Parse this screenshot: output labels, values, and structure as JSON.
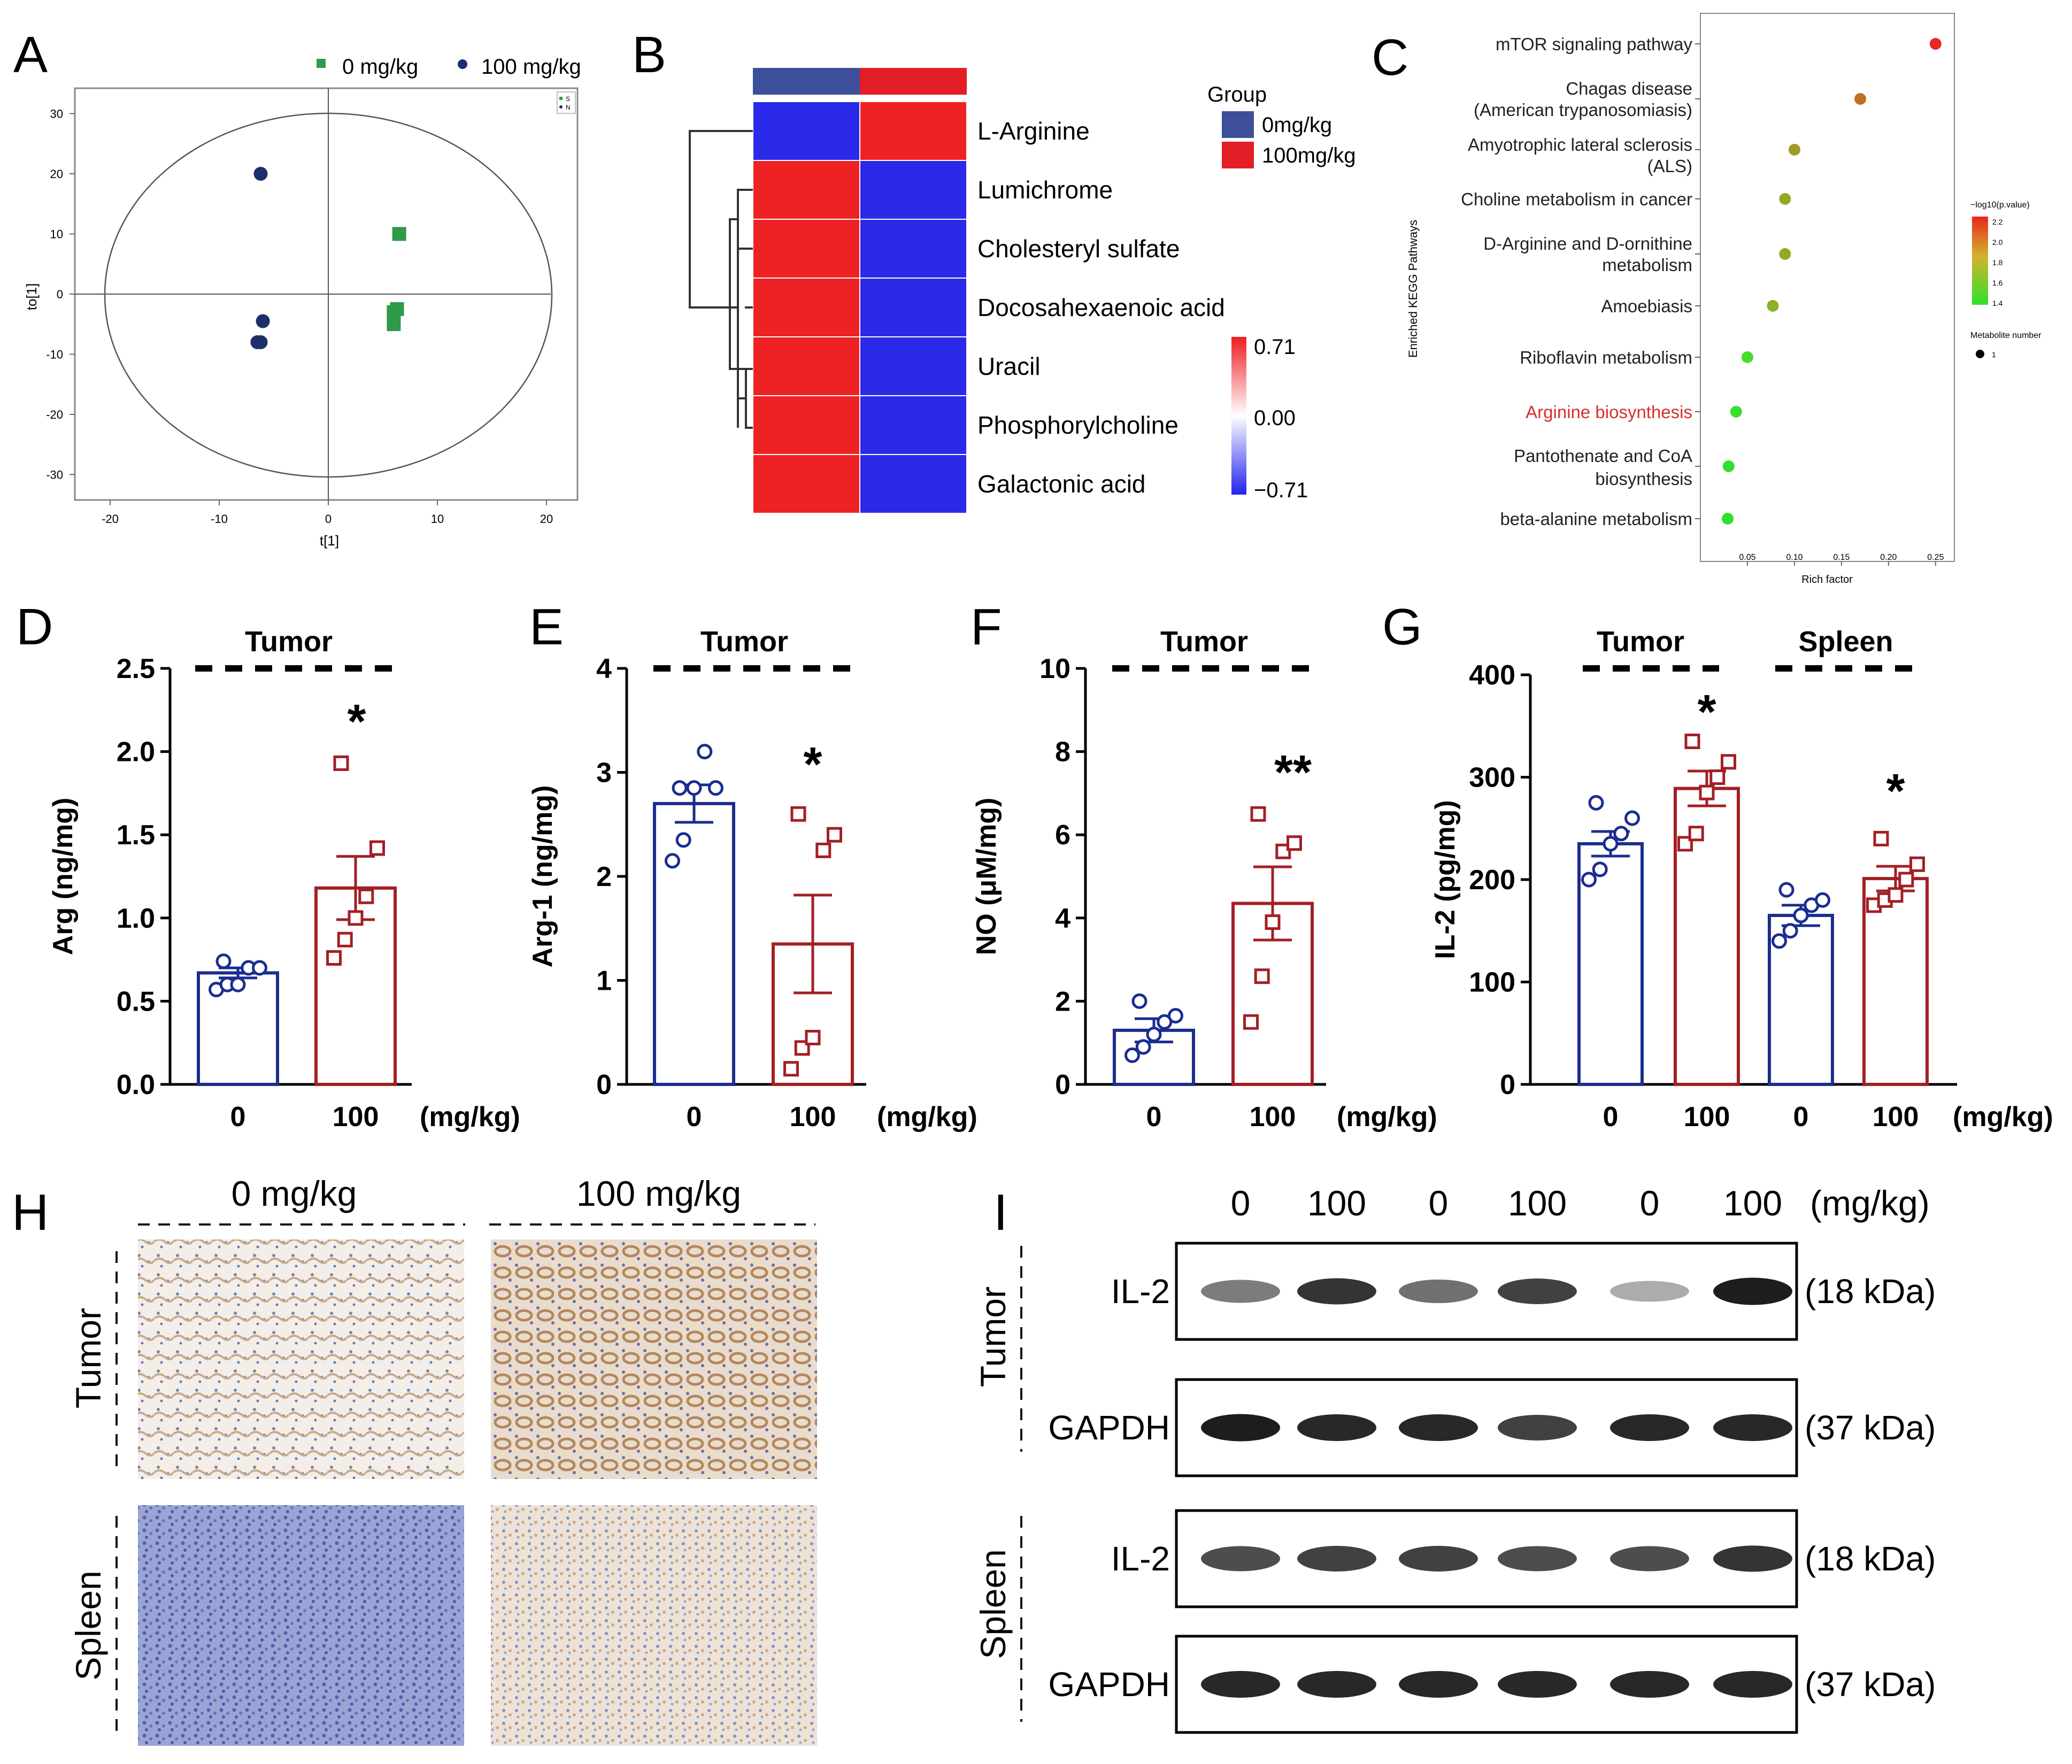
{
  "panel_letters": {
    "a": "A",
    "b": "B",
    "c": "C",
    "d": "D",
    "e": "E",
    "f": "F",
    "g": "G",
    "h": "H",
    "i": "I"
  },
  "colors": {
    "green": "#2e9a4a",
    "navy": "#1c2f6b",
    "blue": "#1b2d8f",
    "red": "#a31f24",
    "heat_red": "#ee2222",
    "heat_blue": "#2a2ae8",
    "group_blue": "#3d4f9a",
    "group_red": "#e41e26"
  },
  "panelA": {
    "legend": [
      "0 mg/kg",
      "100 mg/kg"
    ],
    "small_legend": [
      "S",
      "N"
    ],
    "xlabel": "t[1]",
    "ylabel": "to[1]",
    "xticks": [
      "-20",
      "-10",
      "0",
      "10",
      "20"
    ],
    "yticks": [
      "30",
      "20",
      "10",
      "0",
      "-10",
      "-20",
      "-30"
    ]
  },
  "panelB": {
    "metabolites": [
      "L-Arginine",
      "Lumichrome",
      "Cholesteryl sulfate",
      "Docosahexaenoic acid",
      "Uracil",
      "Phosphorylcholine",
      "Galactonic acid"
    ],
    "group_title": "Group",
    "groups": [
      "0mg/kg",
      "100mg/kg"
    ],
    "scale": [
      "0.71",
      "0.00",
      "−0.71"
    ]
  },
  "panelC": {
    "ylabel": "Enriched KEGG Pathways",
    "xlabel": "Rich factor",
    "pathways": [
      "mTOR signaling pathway",
      "Chagas disease",
      "(American trypanosomiasis)",
      "Amyotrophic lateral sclerosis",
      "(ALS)",
      "Choline metabolism in cancer",
      "D-Arginine and D-ornithine",
      "metabolism",
      "Amoebiasis",
      "Riboflavin metabolism",
      "Arginine biosynthesis",
      "Pantothenate and CoA",
      "biosynthesis",
      "beta-alanine metabolism"
    ],
    "xticks": [
      "0.05",
      "0.10",
      "0.15",
      "0.20",
      "0.25"
    ],
    "legend_title": "−log10(p.value)",
    "legend_ticks": [
      "2.2",
      "2.0",
      "1.8",
      "1.6",
      "1.4"
    ],
    "size_title": "Metabolite number",
    "size_value": "1"
  },
  "bar_panels": {
    "d": {
      "title": "Tumor",
      "ylabel": "Arg (ng/mg)",
      "yticks": [
        "0.0",
        "0.5",
        "1.0",
        "1.5",
        "2.0",
        "2.5"
      ],
      "xticks": [
        "0",
        "100"
      ],
      "unit": "(mg/kg)",
      "sig": "*"
    },
    "e": {
      "title": "Tumor",
      "ylabel": "Arg-1 (ng/mg)",
      "yticks": [
        "0",
        "1",
        "2",
        "3",
        "4"
      ],
      "xticks": [
        "0",
        "100"
      ],
      "unit": "(mg/kg)",
      "sig": "*"
    },
    "f": {
      "title": "Tumor",
      "ylabel": "NO (μM/mg)",
      "yticks": [
        "0",
        "2",
        "4",
        "6",
        "8",
        "10"
      ],
      "xticks": [
        "0",
        "100"
      ],
      "unit": "(mg/kg)",
      "sig": "**"
    },
    "g": {
      "titles": [
        "Tumor",
        "Spleen"
      ],
      "ylabel": "IL-2 (pg/mg)",
      "yticks": [
        "0",
        "100",
        "200",
        "300",
        "400"
      ],
      "xticks": [
        "0",
        "100",
        "0",
        "100"
      ],
      "unit": "(mg/kg)",
      "sig": [
        "*",
        "*"
      ]
    }
  },
  "panelH": {
    "cols": [
      "0 mg/kg",
      "100 mg/kg"
    ],
    "rows": [
      "Tumor",
      "Spleen"
    ]
  },
  "panelI": {
    "doses": [
      "0",
      "100",
      "0",
      "100",
      "0",
      "100"
    ],
    "unit": "(mg/kg)",
    "tissues": [
      "Tumor",
      "Spleen"
    ],
    "blots": [
      {
        "label": "IL-2",
        "size": "(18 kDa)"
      },
      {
        "label": "GAPDH",
        "size": "(37 kDa)"
      },
      {
        "label": "IL-2",
        "size": "(18 kDa)"
      },
      {
        "label": "GAPDH",
        "size": "(37 kDa)"
      }
    ]
  },
  "chart_data": [
    {
      "panel": "A",
      "type": "scatter",
      "title": "",
      "xlabel": "t[1]",
      "ylabel": "to[1]",
      "xlim": [
        -25,
        25
      ],
      "ylim": [
        -35,
        35
      ],
      "series": [
        {
          "name": "0 mg/kg",
          "points": [
            [
              6.5,
              10
            ],
            [
              6.3,
              -2.5
            ],
            [
              6,
              -3
            ],
            [
              6,
              -5
            ]
          ]
        },
        {
          "name": "100 mg/kg",
          "points": [
            [
              -6.2,
              20
            ],
            [
              -6,
              -4.5
            ],
            [
              -6.5,
              -8
            ],
            [
              -6.2,
              -8
            ]
          ]
        }
      ]
    },
    {
      "panel": "B",
      "type": "heatmap",
      "rows": [
        "L-Arginine",
        "Lumichrome",
        "Cholesteryl sulfate",
        "Docosahexaenoic acid",
        "Uracil",
        "Phosphorylcholine",
        "Galactonic acid"
      ],
      "columns": [
        "0mg/kg",
        "100mg/kg"
      ],
      "values": [
        [
          -0.71,
          0.71
        ],
        [
          0.71,
          -0.71
        ],
        [
          0.71,
          -0.71
        ],
        [
          0.71,
          -0.71
        ],
        [
          0.71,
          -0.71
        ],
        [
          0.71,
          -0.71
        ],
        [
          0.71,
          -0.71
        ]
      ],
      "range": [
        -0.71,
        0.71
      ]
    },
    {
      "panel": "C",
      "type": "scatter",
      "title": "",
      "xlabel": "Rich factor",
      "ylabel": "Enriched KEGG Pathways",
      "xlim": [
        0.0,
        0.27
      ],
      "categories": [
        "mTOR signaling pathway",
        "Chagas disease (American trypanosomiasis)",
        "Amyotrophic lateral sclerosis (ALS)",
        "Choline metabolism in cancer",
        "D-Arginine and D-ornithine metabolism",
        "Amoebiasis",
        "Riboflavin metabolism",
        "Arginine biosynthesis",
        "Pantothenate and CoA biosynthesis",
        "beta-alanine metabolism"
      ],
      "rich_factor": [
        0.25,
        0.17,
        0.1,
        0.09,
        0.09,
        0.077,
        0.05,
        0.038,
        0.03,
        0.029
      ],
      "neg_log10_p": [
        2.3,
        2.1,
        1.95,
        1.9,
        1.9,
        1.85,
        1.5,
        1.45,
        1.35,
        1.35
      ],
      "metabolite_number": [
        1,
        1,
        1,
        1,
        1,
        1,
        1,
        1,
        1,
        1
      ],
      "color_range": [
        1.4,
        2.2
      ]
    },
    {
      "panel": "D",
      "type": "bar",
      "title": "Tumor",
      "ylabel": "Arg (ng/mg)",
      "ylim": [
        0,
        2.5
      ],
      "categories": [
        "0",
        "100"
      ],
      "values": [
        0.67,
        1.18
      ],
      "sem": [
        0.03,
        0.19
      ],
      "points": [
        [
          0.57,
          0.6,
          0.6,
          0.7,
          0.7,
          0.74
        ],
        [
          0.76,
          0.87,
          1.0,
          1.13,
          1.42,
          1.93
        ]
      ],
      "significance": "*"
    },
    {
      "panel": "E",
      "type": "bar",
      "title": "Tumor",
      "ylabel": "Arg-1 (ng/mg)",
      "ylim": [
        0,
        4
      ],
      "categories": [
        "0",
        "100"
      ],
      "values": [
        2.7,
        1.35
      ],
      "sem": [
        0.18,
        0.47
      ],
      "points": [
        [
          2.15,
          2.35,
          2.85,
          3.2,
          2.85,
          2.85
        ],
        [
          0.15,
          0.35,
          0.45,
          2.25,
          2.4,
          2.6
        ]
      ],
      "significance": "*"
    },
    {
      "panel": "F",
      "type": "bar",
      "title": "Tumor",
      "ylabel": "NO (μM/mg)",
      "ylim": [
        0,
        10
      ],
      "categories": [
        "0",
        "100"
      ],
      "values": [
        1.3,
        4.35
      ],
      "sem": [
        0.28,
        0.88
      ],
      "points": [
        [
          0.7,
          0.9,
          1.2,
          1.5,
          1.65,
          2.0
        ],
        [
          1.5,
          2.6,
          3.9,
          5.6,
          5.8,
          6.5
        ]
      ],
      "significance": "**"
    },
    {
      "panel": "G",
      "type": "bar",
      "title": "Tumor / Spleen",
      "ylabel": "IL-2 (pg/mg)",
      "ylim": [
        0,
        400
      ],
      "categories": [
        "Tumor 0",
        "Tumor 100",
        "Spleen 0",
        "Spleen 100"
      ],
      "values": [
        235,
        289,
        165,
        201
      ],
      "sem": [
        12,
        17,
        10,
        12
      ],
      "points": [
        [
          200,
          210,
          235,
          245,
          260,
          275
        ],
        [
          235,
          245,
          285,
          300,
          315,
          335
        ],
        [
          140,
          150,
          165,
          175,
          180,
          190
        ],
        [
          175,
          180,
          185,
          200,
          215,
          240
        ]
      ],
      "significance": [
        "*",
        "*"
      ]
    }
  ]
}
